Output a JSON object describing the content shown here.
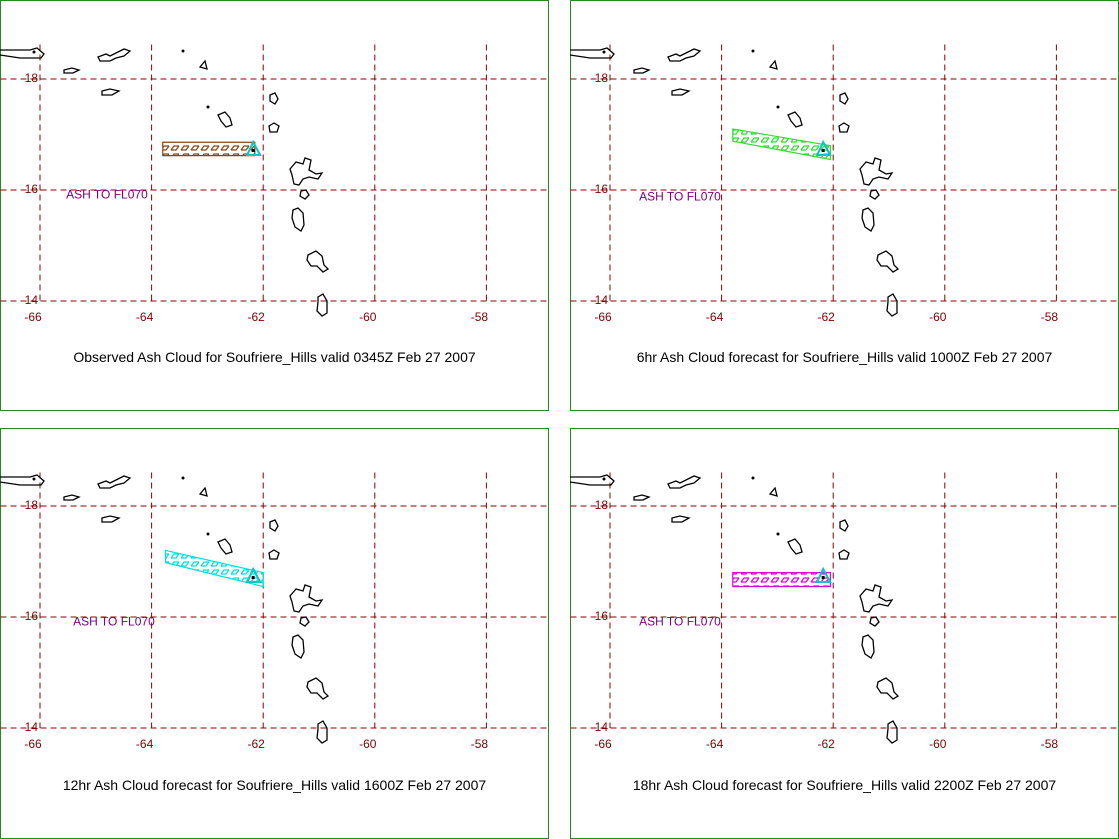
{
  "panels": [
    {
      "caption": "Observed Ash Cloud for Soufriere_Hills valid 0345Z Feb 27 2007",
      "annotation": "ASH TO FL070",
      "ash_color": "#8b4513"
    },
    {
      "caption": "6hr Ash Cloud forecast for Soufriere_Hills valid 1000Z Feb 27 2007",
      "annotation": "ASH TO FL070",
      "ash_color": "#33dd33"
    },
    {
      "caption": "12hr Ash Cloud forecast for Soufriere_Hills valid 1600Z Feb 27 2007",
      "annotation": "ASH TO FL070",
      "ash_color": "#00e0e0"
    },
    {
      "caption": "18hr Ash Cloud forecast for Soufriere_Hills valid 2200Z Feb 27 2007",
      "annotation": "ASH TO FL070",
      "ash_color": "#e000e0"
    }
  ],
  "lon_ticks": [
    -66,
    -64,
    -62,
    -60,
    -58
  ],
  "lat_ticks": [
    18,
    16,
    14
  ]
}
